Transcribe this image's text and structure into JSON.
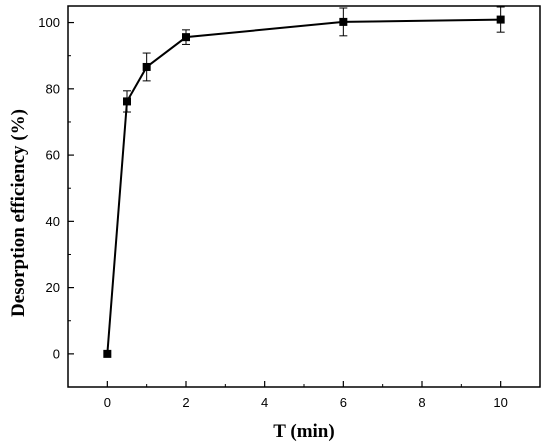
{
  "chart_data": {
    "type": "line",
    "title": "",
    "xlabel": "T (min)",
    "ylabel": "Desorption efficiency (%)",
    "xlim": [
      -1,
      11
    ],
    "ylim": [
      -10,
      105
    ],
    "xticks": [
      0,
      2,
      4,
      6,
      8,
      10
    ],
    "yticks": [
      0,
      20,
      40,
      60,
      80,
      100
    ],
    "grid": false,
    "legend": "none",
    "marker": "square",
    "color": "#000000",
    "series": [
      {
        "x": [
          0,
          0.5,
          1,
          2,
          6,
          10
        ],
        "y": [
          0,
          76.2,
          86.6,
          95.6,
          100.2,
          100.9
        ],
        "error": [
          0,
          3.2,
          4.2,
          2.2,
          4.2,
          3.8
        ]
      }
    ]
  }
}
